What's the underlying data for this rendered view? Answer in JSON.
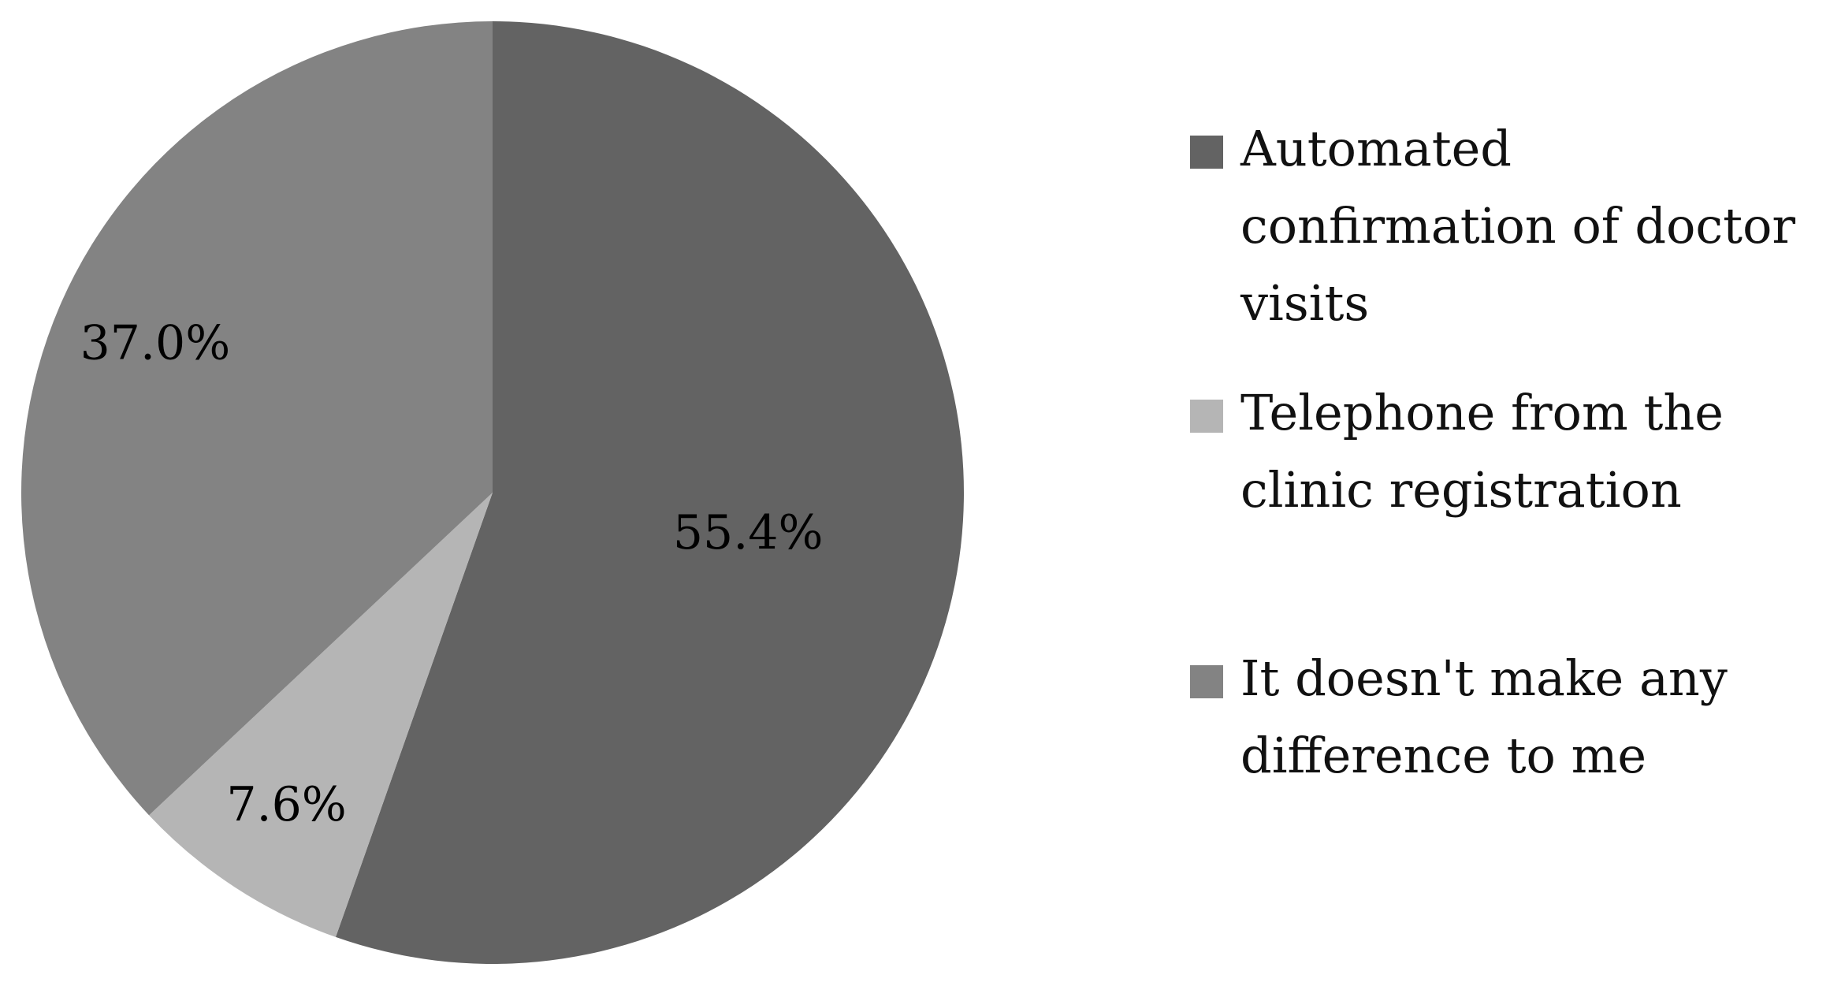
{
  "chart_data": {
    "type": "pie",
    "title": "",
    "slices": [
      {
        "label": "Automated confirmation of doctor visits",
        "value": 55.4,
        "display": "55.4%",
        "color": "#636363"
      },
      {
        "label": "Telephone from the clinic registration",
        "value": 7.6,
        "display": "7.6%",
        "color": "#b5b5b5"
      },
      {
        "label": "It doesn't make any difference to me",
        "value": 37.0,
        "display": "37.0%",
        "color": "#838383"
      }
    ],
    "start_angle_deg": 0,
    "direction": "clockwise",
    "legend_position": "right"
  },
  "legend": {
    "items": [
      {
        "label": "Automated confirmation of doctor visits",
        "color": "#636363"
      },
      {
        "label": "Telephone from the clinic registration",
        "color": "#b5b5b5"
      },
      {
        "label": "It doesn't make any difference to me",
        "color": "#838383"
      }
    ]
  }
}
